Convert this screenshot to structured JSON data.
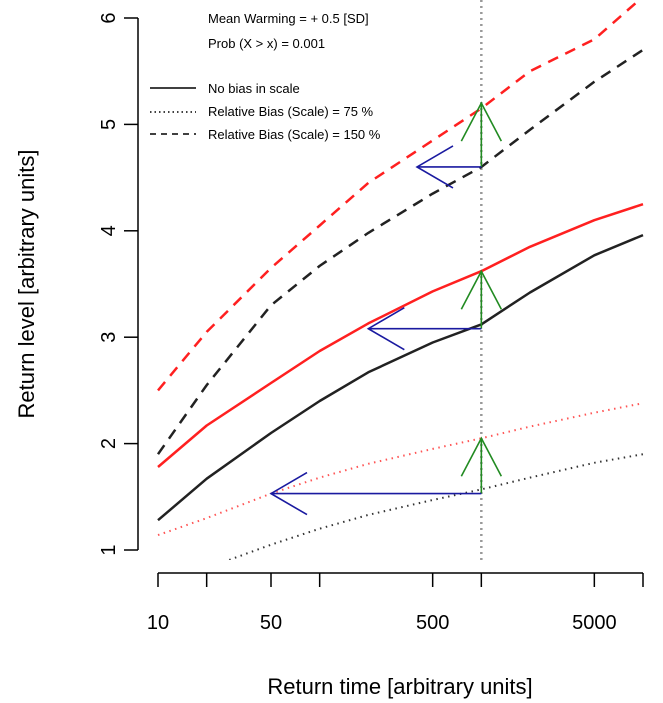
{
  "chart_data": {
    "type": "line",
    "xlabel": "Return time [arbitrary units]",
    "ylabel": "Return level [arbitrary units]",
    "x_scale": "log",
    "xlim": [
      10,
      10000
    ],
    "ylim": [
      1,
      6
    ],
    "x_tick_values": [
      10,
      20,
      50,
      100,
      500,
      1000,
      5000,
      10000
    ],
    "x_tick_labels": [
      "10",
      "",
      "50",
      "",
      "500",
      "",
      "5000",
      ""
    ],
    "y_ticks": [
      1,
      2,
      3,
      4,
      5,
      6
    ],
    "y_tick_labels": [
      "1",
      "2",
      "3",
      "4",
      "5",
      "6"
    ],
    "annotations": [
      "Mean Warming = + 0.5 [SD]",
      "Prob (X > x) = 0.001"
    ],
    "legend": [
      {
        "label": "No bias in scale",
        "style": "solid"
      },
      {
        "label": "Relative Bias (Scale) = 75 %",
        "style": "dotted"
      },
      {
        "label": "Relative Bias (Scale) = 150 %",
        "style": "dashed"
      }
    ],
    "reference_line": {
      "x": 1000,
      "style": "dotted",
      "color": "#999999"
    },
    "series": [
      {
        "bias": "none",
        "climate": "baseline",
        "color": "#222222",
        "style": "solid",
        "x": [
          10,
          20,
          50,
          100,
          200,
          500,
          1000,
          2000,
          5000,
          10000
        ],
        "y": [
          1.28,
          1.67,
          2.1,
          2.4,
          2.67,
          2.95,
          3.12,
          3.42,
          3.77,
          3.96
        ]
      },
      {
        "bias": "none",
        "climate": "warming",
        "color": "#ff2020",
        "style": "solid",
        "x": [
          10,
          20,
          50,
          100,
          200,
          500,
          1000,
          2000,
          5000,
          10000
        ],
        "y": [
          1.78,
          2.17,
          2.57,
          2.87,
          3.13,
          3.43,
          3.62,
          3.85,
          4.1,
          4.25
        ]
      },
      {
        "bias": "75 %",
        "climate": "baseline",
        "color": "#333333",
        "style": "dotted",
        "x": [
          20,
          50,
          100,
          200,
          500,
          1000,
          2000,
          5000,
          10000
        ],
        "y": [
          0.83,
          1.05,
          1.2,
          1.33,
          1.47,
          1.57,
          1.68,
          1.82,
          1.9
        ]
      },
      {
        "bias": "75 %",
        "climate": "warming",
        "color": "#ff5555",
        "style": "dotted",
        "x": [
          10,
          20,
          50,
          100,
          200,
          500,
          1000,
          2000,
          5000,
          10000
        ],
        "y": [
          1.14,
          1.3,
          1.53,
          1.68,
          1.81,
          1.95,
          2.05,
          2.16,
          2.29,
          2.38
        ]
      },
      {
        "bias": "150 %",
        "climate": "baseline",
        "color": "#222222",
        "style": "dashed",
        "x": [
          10,
          20,
          50,
          100,
          200,
          500,
          1000,
          2000,
          5000,
          10000
        ],
        "y": [
          1.9,
          2.55,
          3.3,
          3.67,
          3.98,
          4.35,
          4.6,
          4.95,
          5.4,
          5.7
        ]
      },
      {
        "bias": "150 %",
        "climate": "warming",
        "color": "#ff2020",
        "style": "dashed",
        "x": [
          10,
          20,
          50,
          100,
          200,
          500,
          1000,
          2000,
          5000,
          10000
        ],
        "y": [
          2.5,
          3.05,
          3.65,
          4.05,
          4.45,
          4.85,
          5.15,
          5.5,
          5.8,
          6.2
        ]
      }
    ],
    "vertical_arrows": [
      {
        "x": 1000,
        "from": 1.53,
        "to": 2.05,
        "color": "#228b22"
      },
      {
        "x": 1000,
        "from": 3.08,
        "to": 3.62,
        "color": "#228b22"
      },
      {
        "x": 1000,
        "from": 4.6,
        "to": 5.2,
        "color": "#228b22"
      }
    ],
    "horizontal_arrows": [
      {
        "y": 1.53,
        "from": 1000,
        "to": 50,
        "color": "#1a1aa0"
      },
      {
        "y": 3.08,
        "from": 1000,
        "to": 200,
        "color": "#1a1aa0"
      },
      {
        "y": 4.6,
        "from": 1000,
        "to": 400,
        "color": "#1a1aa0"
      }
    ]
  }
}
